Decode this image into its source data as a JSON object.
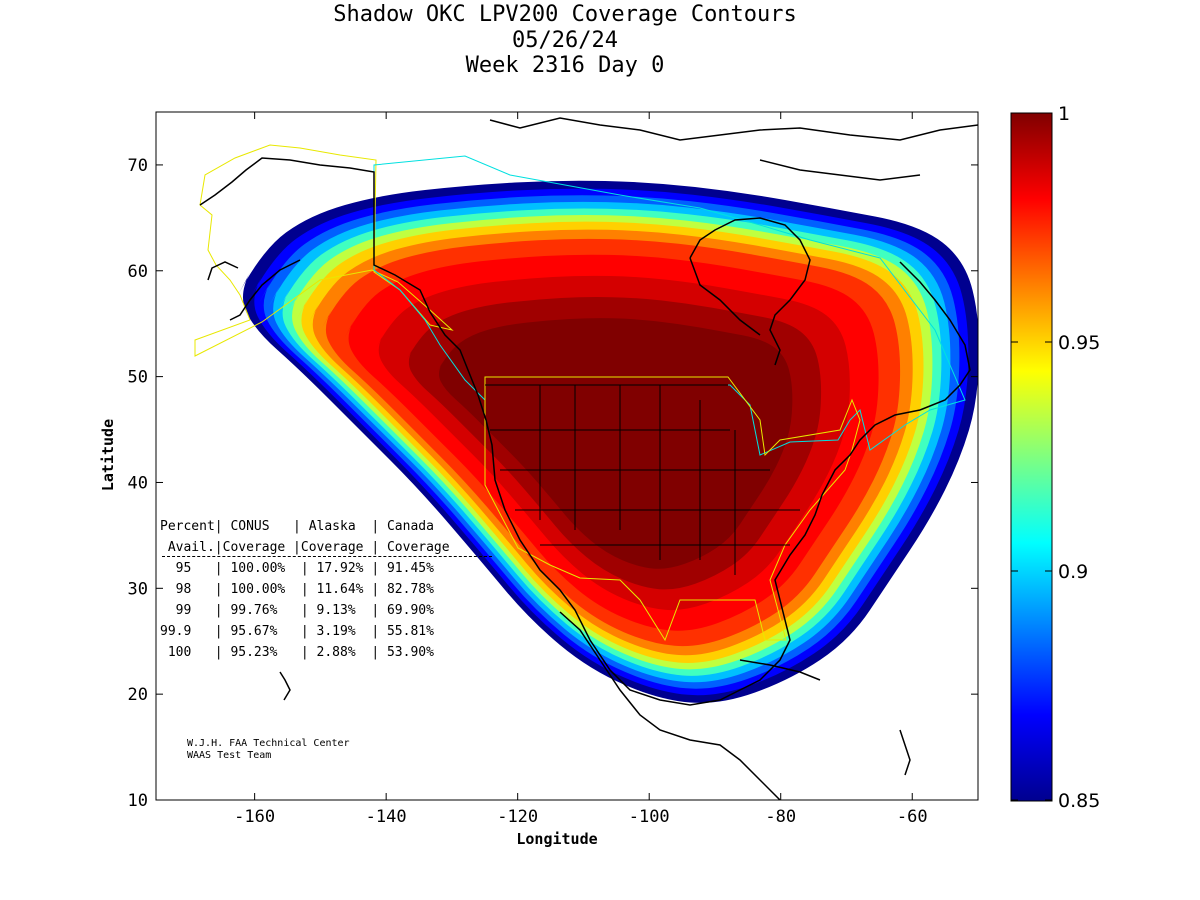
{
  "title": {
    "line1": "Shadow OKC LPV200 Coverage Contours",
    "line2": "05/26/24",
    "line3": "Week 2316 Day 0"
  },
  "axes": {
    "xlabel": "Longitude",
    "ylabel": "Latitude",
    "xlim": [
      -175,
      -50
    ],
    "ylim": [
      10,
      75
    ],
    "xticks": [
      -160,
      -140,
      -120,
      -100,
      -80,
      -60
    ],
    "yticks": [
      10,
      20,
      30,
      40,
      50,
      60,
      70
    ]
  },
  "colorbar": {
    "min": 0.85,
    "max": 1,
    "ticks": [
      "0.85",
      "0.9",
      "0.95",
      "1"
    ],
    "colormap": "jet"
  },
  "coverage_table": {
    "header1": "Percent| CONUS   | Alaska  | Canada",
    "header2": " Avail.|Coverage |Coverage | Coverage",
    "rows": [
      "  95   | 100.00%  | 17.92% | 91.45%",
      "  98   | 100.00%  | 11.64% | 82.78%",
      "  99   | 99.76%   | 9.13%  | 69.90%",
      "99.9   | 95.67%   | 3.19%  | 55.81%",
      " 100   | 95.23%   | 2.88%  | 53.90%"
    ]
  },
  "credit": {
    "line1": "W.J.H. FAA Technical Center",
    "line2": "WAAS Test Team"
  },
  "colors": {
    "region_outline_alaska": "#e8e800",
    "region_outline_canada": "#00e0e0",
    "region_outline_conus": "#e8e800",
    "coastline": "#000000"
  }
}
